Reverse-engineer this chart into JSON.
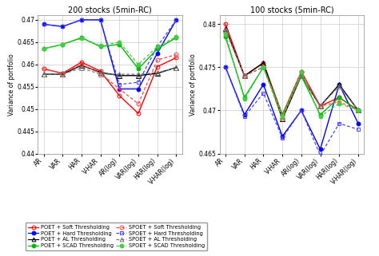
{
  "x_labels": [
    "AR",
    "VAR",
    "HAR",
    "V-HAR",
    "AR(log)",
    "VAR(log)",
    "HAR(log)",
    "V-HAR(log)"
  ],
  "chart1": {
    "title": "200 stocks (5min-RC)",
    "ylabel": "Variance of portfolio",
    "ylim": [
      0.44,
      0.471
    ],
    "yticks": [
      0.44,
      0.445,
      0.45,
      0.455,
      0.46,
      0.465,
      0.47
    ],
    "series": {
      "POET_soft": [
        0.459,
        0.458,
        0.4605,
        0.4585,
        0.453,
        0.449,
        0.4595,
        0.4615
      ],
      "POET_hard": [
        0.469,
        0.4685,
        0.47,
        0.47,
        0.4545,
        0.4545,
        0.4625,
        0.47
      ],
      "POET_al": [
        0.4578,
        0.4578,
        0.4598,
        0.4582,
        0.4575,
        0.4575,
        0.458,
        0.4593
      ],
      "POET_scad": [
        0.4635,
        0.4645,
        0.466,
        0.464,
        0.4645,
        0.459,
        0.4635,
        0.466
      ],
      "SPOET_soft": [
        0.459,
        0.458,
        0.46,
        0.458,
        0.4545,
        0.4512,
        0.461,
        0.4622
      ],
      "SPOET_hard": [
        0.469,
        0.4685,
        0.47,
        0.47,
        0.4555,
        0.456,
        0.464,
        0.47
      ],
      "SPOET_al": [
        0.4578,
        0.4578,
        0.4592,
        0.4578,
        0.4578,
        0.4578,
        0.4582,
        0.4592
      ],
      "SPOET_scad": [
        0.4635,
        0.4645,
        0.4658,
        0.4642,
        0.465,
        0.46,
        0.464,
        0.4662
      ]
    }
  },
  "chart2": {
    "title": "100 stocks (5min-RC)",
    "ylabel": "Variance of portfolio",
    "ylim": [
      0.465,
      0.481
    ],
    "yticks": [
      0.465,
      0.47,
      0.475,
      0.48
    ],
    "series": {
      "POET_soft": [
        0.48,
        0.474,
        0.4755,
        0.4695,
        0.4745,
        0.4705,
        0.4715,
        0.47
      ],
      "POET_hard": [
        0.475,
        0.4695,
        0.473,
        0.467,
        0.47,
        0.4655,
        0.473,
        0.4685
      ],
      "POET_al": [
        0.4795,
        0.474,
        0.4755,
        0.469,
        0.474,
        0.4705,
        0.473,
        0.47
      ],
      "POET_scad": [
        0.4785,
        0.4715,
        0.475,
        0.4695,
        0.474,
        0.4695,
        0.4715,
        0.47
      ],
      "SPOET_soft": [
        0.4793,
        0.474,
        0.475,
        0.469,
        0.4745,
        0.4705,
        0.471,
        0.47
      ],
      "SPOET_hard": [
        0.475,
        0.4693,
        0.472,
        0.4668,
        0.47,
        0.4648,
        0.4685,
        0.4678
      ],
      "SPOET_al": [
        0.4793,
        0.474,
        0.475,
        0.4693,
        0.474,
        0.4705,
        0.4728,
        0.47
      ],
      "SPOET_scad": [
        0.4788,
        0.4713,
        0.475,
        0.4693,
        0.4745,
        0.4693,
        0.4708,
        0.47
      ]
    }
  },
  "series_styles": {
    "POET_soft": {
      "color": "#FF0000",
      "linestyle": "-",
      "marker": "o",
      "markersize": 3.5,
      "linewidth": 1.0,
      "markerfacecolor": "none",
      "dashes": null
    },
    "POET_hard": {
      "color": "#0000FF",
      "linestyle": "-",
      "marker": "o",
      "markersize": 3.5,
      "linewidth": 1.0,
      "markerfacecolor": "#0000FF",
      "dashes": null
    },
    "POET_al": {
      "color": "#000000",
      "linestyle": "-",
      "marker": "^",
      "markersize": 4.5,
      "linewidth": 1.0,
      "markerfacecolor": "none",
      "dashes": null
    },
    "POET_scad": {
      "color": "#00BB00",
      "linestyle": "-",
      "marker": "o",
      "markersize": 3.5,
      "linewidth": 1.0,
      "markerfacecolor": "#00BB00",
      "dashes": null
    },
    "SPOET_soft": {
      "color": "#FF4444",
      "linestyle": "--",
      "marker": "o",
      "markersize": 3.5,
      "linewidth": 0.9,
      "markerfacecolor": "none",
      "dashes": [
        3,
        2
      ]
    },
    "SPOET_hard": {
      "color": "#4444FF",
      "linestyle": "--",
      "marker": "s",
      "markersize": 3.5,
      "linewidth": 0.9,
      "markerfacecolor": "none",
      "dashes": [
        3,
        2
      ]
    },
    "SPOET_al": {
      "color": "#777777",
      "linestyle": "--",
      "marker": "^",
      "markersize": 4.5,
      "linewidth": 0.9,
      "markerfacecolor": "none",
      "dashes": [
        3,
        2
      ]
    },
    "SPOET_scad": {
      "color": "#44CC44",
      "linestyle": "--",
      "marker": "o",
      "markersize": 3.5,
      "linewidth": 0.9,
      "markerfacecolor": "#44CC44",
      "dashes": [
        3,
        2
      ]
    }
  },
  "legend_labels": {
    "POET_soft": "POET + Soft Thresholding",
    "POET_hard": "POET + Hard Thresholding",
    "POET_al": "POET + AL Thresholding",
    "POET_scad": "POET + SCAD Thresholding",
    "SPOET_soft": "SPOET + Soft Thresholding",
    "SPOET_hard": "SPOET + Hard Thresholding",
    "SPOET_al": "SPOET + AL Thresholding",
    "SPOET_scad": "SPOET + SCAD Thresholding"
  },
  "background_color": "#FFFFFF",
  "grid_color": "#CCCCCC"
}
